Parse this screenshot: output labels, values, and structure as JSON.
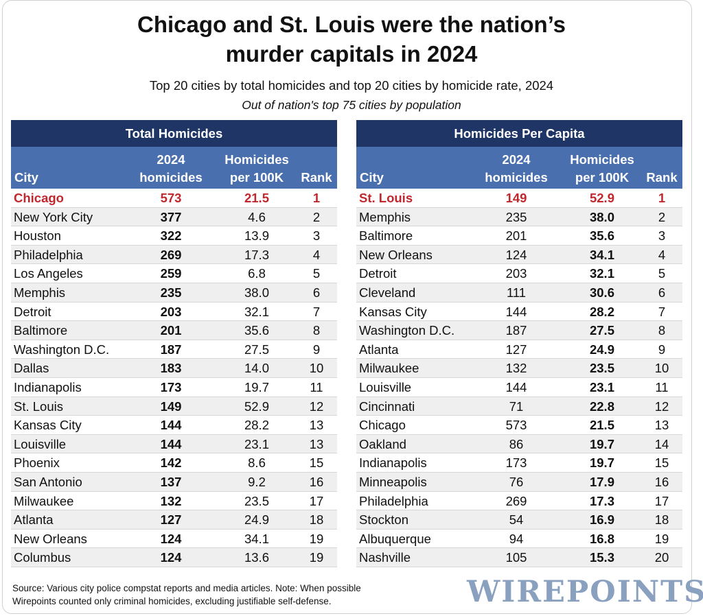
{
  "title": [
    "Chicago and St. Louis were the nation’s",
    "murder capitals in 2024"
  ],
  "subtitle": "Top 20 cities by total homicides and top 20 cities by homicide rate, 2024",
  "subtitle2": "Out of nation's top 75 cities by population",
  "columns": {
    "city": "City",
    "homicides": [
      "2024",
      "homicides"
    ],
    "rate": [
      "Homicides",
      "per 100K"
    ],
    "rank": "Rank"
  },
  "colors": {
    "panel_header": "#1f3565",
    "column_header": "#4a6fae",
    "highlight": "#c0282d",
    "logo": "#8aa0bf"
  },
  "chart_data": [
    {
      "type": "table",
      "title": "Total Homicides",
      "columns": [
        "City",
        "2024 homicides",
        "Homicides per 100K",
        "Rank"
      ],
      "rows": [
        [
          "Chicago",
          "573",
          "21.5",
          "1"
        ],
        [
          "New York City",
          "377",
          "4.6",
          "2"
        ],
        [
          "Houston",
          "322",
          "13.9",
          "3"
        ],
        [
          "Philadelphia",
          "269",
          "17.3",
          "4"
        ],
        [
          "Los Angeles",
          "259",
          "6.8",
          "5"
        ],
        [
          "Memphis",
          "235",
          "38.0",
          "6"
        ],
        [
          "Detroit",
          "203",
          "32.1",
          "7"
        ],
        [
          "Baltimore",
          "201",
          "35.6",
          "8"
        ],
        [
          "Washington D.C.",
          "187",
          "27.5",
          "9"
        ],
        [
          "Dallas",
          "183",
          "14.0",
          "10"
        ],
        [
          "Indianapolis",
          "173",
          "19.7",
          "11"
        ],
        [
          "St. Louis",
          "149",
          "52.9",
          "12"
        ],
        [
          "Kansas City",
          "144",
          "28.2",
          "13"
        ],
        [
          "Louisville",
          "144",
          "23.1",
          "13"
        ],
        [
          "Phoenix",
          "142",
          "8.6",
          "15"
        ],
        [
          "San Antonio",
          "137",
          "9.2",
          "16"
        ],
        [
          "Milwaukee",
          "132",
          "23.5",
          "17"
        ],
        [
          "Atlanta",
          "127",
          "24.9",
          "18"
        ],
        [
          "New Orleans",
          "124",
          "34.1",
          "19"
        ],
        [
          "Columbus",
          "124",
          "13.6",
          "19"
        ]
      ]
    },
    {
      "type": "table",
      "title": "Homicides Per Capita",
      "columns": [
        "City",
        "2024 homicides",
        "Homicides per 100K",
        "Rank"
      ],
      "rows": [
        [
          "St. Louis",
          "149",
          "52.9",
          "1"
        ],
        [
          "Memphis",
          "235",
          "38.0",
          "2"
        ],
        [
          "Baltimore",
          "201",
          "35.6",
          "3"
        ],
        [
          "New Orleans",
          "124",
          "34.1",
          "4"
        ],
        [
          "Detroit",
          "203",
          "32.1",
          "5"
        ],
        [
          "Cleveland",
          "111",
          "30.6",
          "6"
        ],
        [
          "Kansas City",
          "144",
          "28.2",
          "7"
        ],
        [
          "Washington D.C.",
          "187",
          "27.5",
          "8"
        ],
        [
          "Atlanta",
          "127",
          "24.9",
          "9"
        ],
        [
          "Milwaukee",
          "132",
          "23.5",
          "10"
        ],
        [
          "Louisville",
          "144",
          "23.1",
          "11"
        ],
        [
          "Cincinnati",
          "71",
          "22.8",
          "12"
        ],
        [
          "Chicago",
          "573",
          "21.5",
          "13"
        ],
        [
          "Oakland",
          "86",
          "19.7",
          "14"
        ],
        [
          "Indianapolis",
          "173",
          "19.7",
          "15"
        ],
        [
          "Minneapolis",
          "76",
          "17.9",
          "16"
        ],
        [
          "Philadelphia",
          "269",
          "17.3",
          "17"
        ],
        [
          "Stockton",
          "54",
          "16.9",
          "18"
        ],
        [
          "Albuquerque",
          "94",
          "16.8",
          "19"
        ],
        [
          "Nashville",
          "105",
          "15.3",
          "20"
        ]
      ]
    }
  ],
  "source": [
    "Source: Various city police compstat reports and media articles. Note: When possible",
    "Wirepoints counted only criminal homicides, excluding justifiable self-defense."
  ],
  "logo": "WIREPOINTS"
}
